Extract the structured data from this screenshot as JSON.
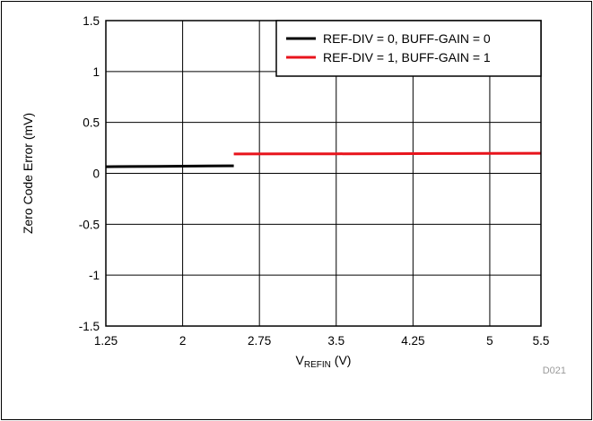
{
  "chart_data": {
    "type": "line",
    "xlabel_main": "V",
    "xlabel_sub": "REFIN",
    "xlabel_unit": " (V)",
    "ylabel": "Zero Code Error (mV)",
    "xlim": [
      1.25,
      5.5
    ],
    "ylim": [
      -1.5,
      1.5
    ],
    "x_ticks": [
      1.25,
      2,
      2.75,
      3.5,
      4.25,
      5,
      5.5
    ],
    "x_tick_labels": [
      "1.25",
      "2",
      "2.75",
      "3.5",
      "4.25",
      "5",
      "5.5"
    ],
    "y_ticks": [
      1.5,
      1,
      0.5,
      0,
      -0.5,
      -1,
      -1.5
    ],
    "y_tick_labels": [
      "1.5",
      "1",
      "0.5",
      "0",
      "-0.5",
      "-1",
      "-1.5"
    ],
    "grid": true,
    "legend_position": "top-right",
    "series": [
      {
        "name": "REF-DIV = 0, BUFF-GAIN = 0",
        "color": "#000000",
        "x": [
          1.25,
          1.5,
          1.75,
          2.0,
          2.25,
          2.5
        ],
        "y": [
          0.065,
          0.067,
          0.068,
          0.07,
          0.072,
          0.074
        ]
      },
      {
        "name": "REF-DIV = 1, BUFF-GAIN = 1",
        "color": "#e8141c",
        "x": [
          2.5,
          3.0,
          3.5,
          4.0,
          4.5,
          5.0,
          5.5
        ],
        "y": [
          0.19,
          0.191,
          0.192,
          0.193,
          0.194,
          0.195,
          0.197
        ]
      }
    ],
    "figure_code": "D021"
  }
}
